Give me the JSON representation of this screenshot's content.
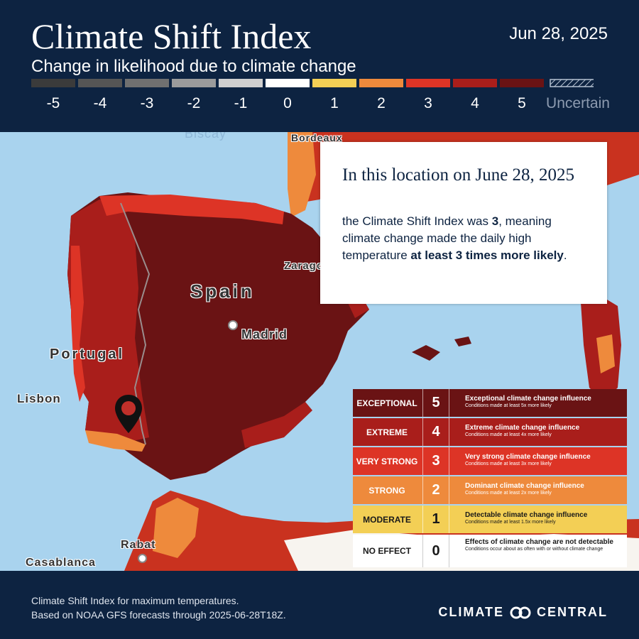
{
  "header": {
    "title": "Climate Shift Index",
    "subtitle": "Change in likelihood due to climate change",
    "date": "Jun 28, 2025"
  },
  "scale": {
    "items": [
      {
        "label": "-5",
        "color": "#3b3b3b"
      },
      {
        "label": "-4",
        "color": "#555555"
      },
      {
        "label": "-3",
        "color": "#707070"
      },
      {
        "label": "-2",
        "color": "#9b9b9b"
      },
      {
        "label": "-1",
        "color": "#cfcfcf"
      },
      {
        "label": "0",
        "color": "#ffffff"
      },
      {
        "label": "1",
        "color": "#f3cf55"
      },
      {
        "label": "2",
        "color": "#ee8a3c"
      },
      {
        "label": "3",
        "color": "#dd3426"
      },
      {
        "label": "4",
        "color": "#a91e1b"
      },
      {
        "label": "5",
        "color": "#6a1314"
      }
    ],
    "uncertain_label": "Uncertain"
  },
  "map": {
    "labels": {
      "bordeaux": "Bordeaux",
      "zaragoza": "Zaragoza",
      "spain": "Spain",
      "madrid": "Madrid",
      "portugal": "Portugal",
      "lisbon": "Lisbon",
      "rabat": "Rabat",
      "casablanca": "Casablanca",
      "biscay": "Biscay"
    },
    "marker_icon": "location-pin-icon"
  },
  "info": {
    "heading": "In this location on June 28, 2025",
    "body_prefix": "the Climate Shift Index was ",
    "value": "3",
    "body_middle": ", meaning climate change made the daily high temperature ",
    "emphasis": "at least 3 times more likely",
    "body_suffix": "."
  },
  "legend": {
    "rows": [
      {
        "name": "EXCEPTIONAL",
        "num": "5",
        "desc": "Exceptional climate change influence",
        "cond": "Conditions made at least 5x more likely",
        "color": "#6a1314",
        "text_color": "#ffffff"
      },
      {
        "name": "EXTREME",
        "num": "4",
        "desc": "Extreme climate change influence",
        "cond": "Conditions made at least 4x more likely",
        "color": "#a91e1b",
        "text_color": "#ffffff"
      },
      {
        "name": "VERY STRONG",
        "num": "3",
        "desc": "Very strong climate change influence",
        "cond": "Conditions made at least 3x more likely",
        "color": "#dd3426",
        "text_color": "#ffffff"
      },
      {
        "name": "STRONG",
        "num": "2",
        "desc": "Dominant climate change influence",
        "cond": "Conditions made at least 2x more likely",
        "color": "#ee8a3c",
        "text_color": "#ffffff"
      },
      {
        "name": "MODERATE",
        "num": "1",
        "desc": "Detectable climate change influence",
        "cond": "Conditions made at least 1.5x more likely",
        "color": "#f3cf55",
        "text_color": "#1a1a1a"
      },
      {
        "name": "NO EFFECT",
        "num": "0",
        "desc": "Effects of climate change are not detectable",
        "cond": "Conditions occur about as often with or without climate change",
        "color": "#ffffff",
        "text_color": "#1a1a1a"
      }
    ]
  },
  "footer": {
    "line1": "Climate Shift Index for maximum temperatures.",
    "line2": "Based on NOAA GFS forecasts through 2025-06-28T18Z.",
    "logo_left": "CLIMATE",
    "logo_right": "CENTRAL",
    "logo_icon": "climate-central-rings-icon"
  }
}
